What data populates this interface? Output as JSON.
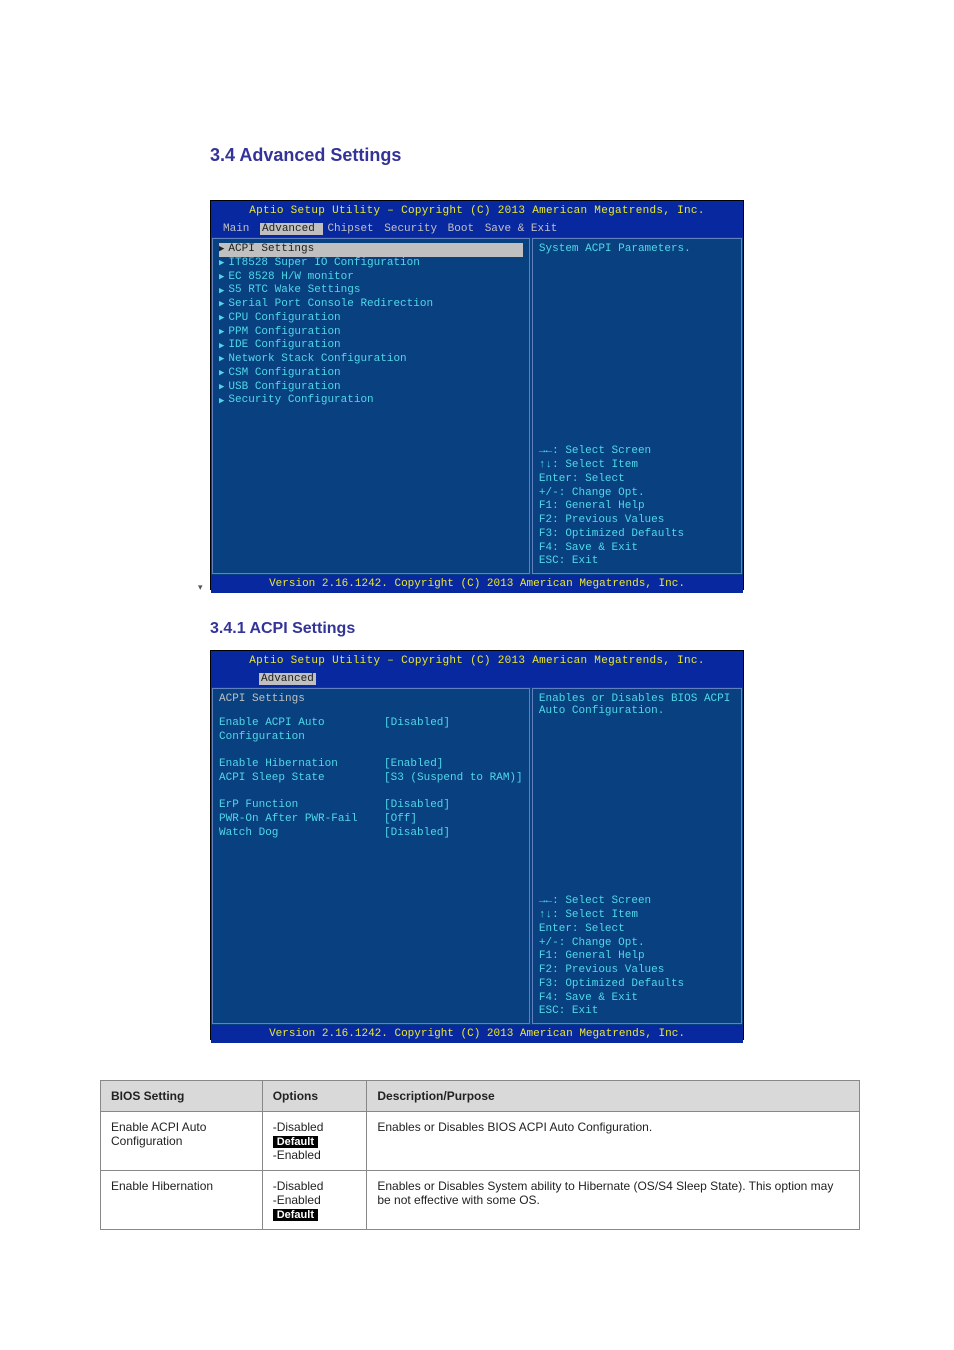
{
  "titles": {
    "page": "3.4 Advanced Settings",
    "acpi": "3.4.1 ACPI Settings"
  },
  "bios_header": "Aptio Setup Utility – Copyright (C) 2013 American Megatrends, Inc.",
  "bios_footer": "Version 2.16.1242. Copyright (C) 2013 American Megatrends, Inc.",
  "colors": {
    "window_bg": "#0828a0",
    "body_bg": "#084080",
    "text_cyan": "#50d8e8",
    "text_yellow": "#e8e830",
    "text_grey": "#c0c0c0",
    "sel_bg": "#c0c0c0",
    "sel_fg": "#202020"
  },
  "screen1": {
    "tabs": [
      "Main",
      "Advanced",
      "Chipset",
      "Security",
      "Boot",
      "Save & Exit"
    ],
    "active_tab": "Advanced",
    "menu": [
      "ACPI Settings",
      "IT8528 Super IO Configuration",
      "EC 8528 H/W monitor",
      "S5 RTC Wake Settings",
      "Serial Port Console Redirection",
      "CPU Configuration",
      "PPM Configuration",
      "IDE Configuration",
      "Network Stack Configuration",
      "CSM Configuration",
      "USB Configuration",
      "Security Configuration"
    ],
    "selected_index": 0,
    "help": "System ACPI Parameters."
  },
  "screen2": {
    "tabs": [
      "Advanced"
    ],
    "active_tab": "Advanced",
    "section_header": "ACPI Settings",
    "settings": [
      {
        "label": "Enable ACPI Auto Configuration",
        "value": "[Disabled]"
      },
      {
        "label": "",
        "value": ""
      },
      {
        "label": "Enable Hibernation",
        "value": "[Enabled]"
      },
      {
        "label": "ACPI Sleep State",
        "value": "[S3 (Suspend to RAM)]"
      },
      {
        "label": "",
        "value": ""
      },
      {
        "label": "ErP Function",
        "value": "[Disabled]"
      },
      {
        "label": "PWR-On After PWR-Fail",
        "value": "[Off]"
      },
      {
        "label": "Watch Dog",
        "value": "[Disabled]"
      }
    ],
    "help_lines": [
      "Enables or Disables BIOS ACPI",
      "Auto Configuration."
    ]
  },
  "nav_keys": [
    "→←: Select Screen",
    "↑↓: Select Item",
    "Enter: Select",
    "+/-: Change Opt.",
    "F1: General Help",
    "F2: Previous Values",
    "F3: Optimized Defaults",
    "F4: Save & Exit",
    "ESC: Exit"
  ],
  "table": {
    "headers": [
      "BIOS Setting",
      "Options",
      "Description/Purpose"
    ],
    "rows": [
      {
        "setting": "Enable ACPI Auto Configuration",
        "options_prefix": "-Disabled",
        "options_suffix": "-Enabled",
        "default_badge": "Default",
        "desc": "Enables or Disables BIOS ACPI Auto Configuration."
      },
      {
        "setting": "Enable Hibernation",
        "options_prefix": "-Disabled\n-Enabled",
        "options_suffix": "",
        "default_badge": "Default",
        "desc": "Enables or Disables System ability to Hibernate (OS/S4 Sleep State). This option may be not effective with some OS."
      }
    ]
  }
}
